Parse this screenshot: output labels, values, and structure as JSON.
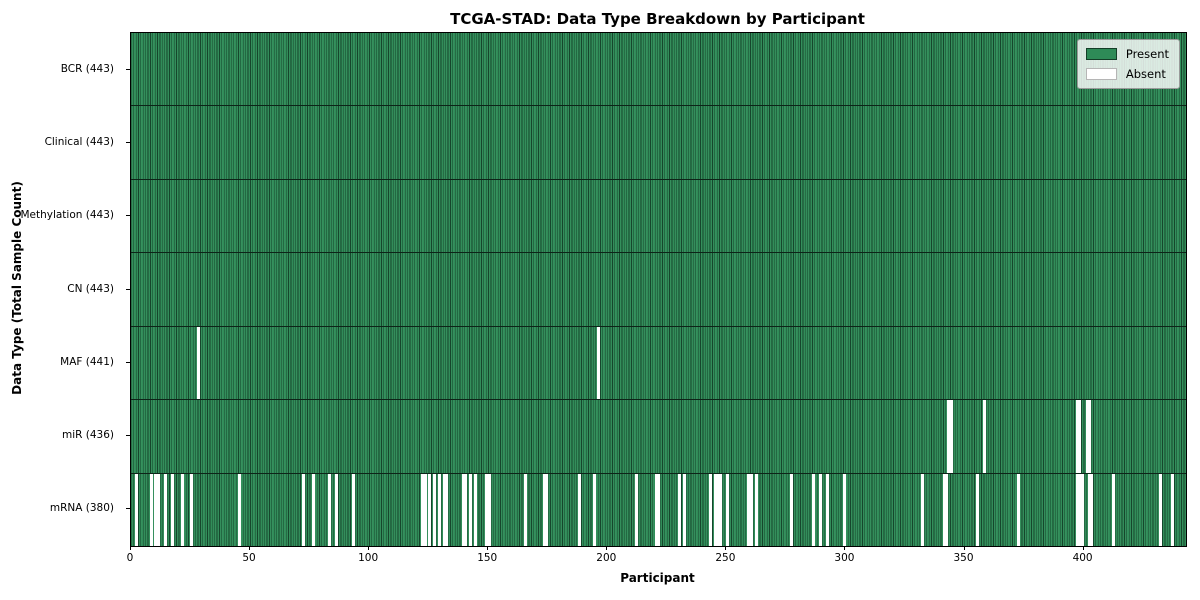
{
  "chart_data": {
    "type": "heatmap",
    "title": "TCGA-STAD: Data Type Breakdown by Participant",
    "xlabel": "Participant",
    "ylabel": "Data Type (Total Sample Count)",
    "legend_items": [
      {
        "label": "Present",
        "color": "#2e8b57"
      },
      {
        "label": "Absent",
        "color": "#ffffff"
      }
    ],
    "colors": {
      "present": "#2e8b57",
      "absent": "#ffffff",
      "cell_edge": "#0d2418",
      "row_divider": "#000000"
    },
    "n_participants": 443,
    "x_axis": {
      "min": 0,
      "max": 443,
      "tick_values": [
        0,
        50,
        100,
        150,
        200,
        250,
        300,
        350,
        400
      ]
    },
    "rows": [
      {
        "label": "BCR (443)",
        "data_type": "BCR",
        "present_count": 443,
        "absent_participants": []
      },
      {
        "label": "Clinical (443)",
        "data_type": "Clinical",
        "present_count": 443,
        "absent_participants": []
      },
      {
        "label": "Methylation (443)",
        "data_type": "Methylation",
        "present_count": 443,
        "absent_participants": []
      },
      {
        "label": "CN (443)",
        "data_type": "CN",
        "present_count": 443,
        "absent_participants": []
      },
      {
        "label": "MAF (441)",
        "data_type": "MAF",
        "present_count": 441,
        "absent_participants": [
          28,
          196
        ]
      },
      {
        "label": "miR (436)",
        "data_type": "miR",
        "present_count": 436,
        "absent_participants": [
          343,
          344,
          358,
          397,
          398,
          401,
          402
        ]
      },
      {
        "label": "mRNA (380)",
        "data_type": "mRNA",
        "present_count": 380,
        "absent_participants": [
          2,
          8,
          10,
          11,
          14,
          17,
          21,
          25,
          45,
          72,
          76,
          83,
          86,
          93,
          122,
          123,
          125,
          127,
          129,
          131,
          132,
          139,
          140,
          142,
          144,
          149,
          150,
          165,
          173,
          174,
          188,
          194,
          212,
          220,
          221,
          230,
          232,
          243,
          245,
          246,
          247,
          250,
          259,
          260,
          262,
          277,
          286,
          289,
          292,
          299,
          332,
          341,
          342,
          355,
          372,
          397,
          398,
          399,
          402,
          403,
          412,
          432,
          437
        ]
      }
    ]
  }
}
